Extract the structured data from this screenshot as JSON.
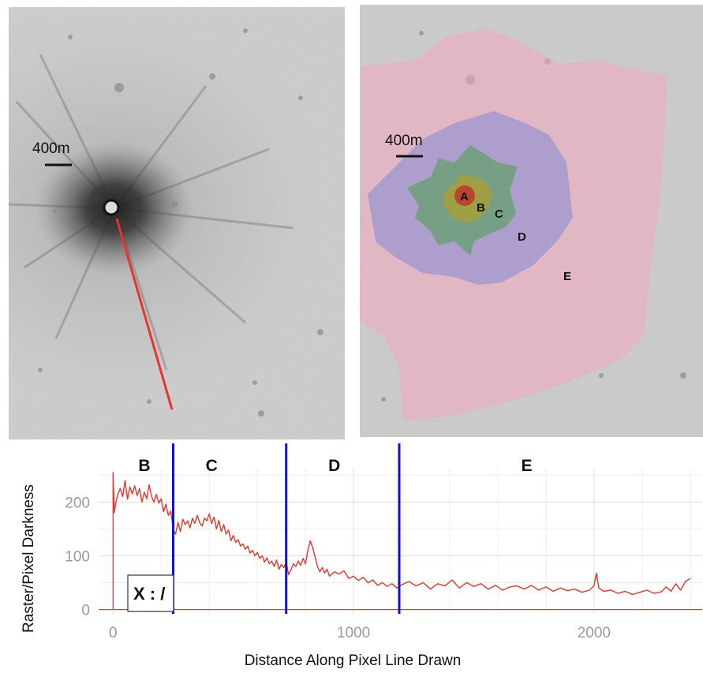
{
  "left_panel": {
    "scale_label": "400m",
    "profile_line_color": "#e8352a"
  },
  "right_panel": {
    "scale_label": "400m",
    "zones": [
      {
        "label": "A",
        "color": "#c0362a"
      },
      {
        "label": "B",
        "color": "#a8a020"
      },
      {
        "label": "C",
        "color": "#5aa060"
      },
      {
        "label": "D",
        "color": "#8c8fd8"
      },
      {
        "label": "E",
        "color": "#f0a8b8"
      }
    ]
  },
  "chart_data": {
    "type": "line",
    "xlabel": "Distance Along Pixel Line Drawn",
    "ylabel": "Raster/Pixel Darkness",
    "xlim": [
      -60,
      2450
    ],
    "ylim": [
      -8,
      262
    ],
    "x_ticks": [
      0,
      1000,
      2000
    ],
    "y_ticks": [
      0,
      100,
      200
    ],
    "line_color": "#e8352a",
    "divider_color": "#1010cc",
    "segment_boundaries": [
      250,
      720,
      1190
    ],
    "segment_labels": [
      {
        "label": "B",
        "x": 130
      },
      {
        "label": "C",
        "x": 410
      },
      {
        "label": "D",
        "x": 920
      },
      {
        "label": "E",
        "x": 1720
      }
    ],
    "series": [
      {
        "x": [
          0,
          5,
          10,
          20,
          30,
          40,
          50,
          60,
          70,
          80,
          90,
          100,
          110,
          120,
          130,
          140,
          150,
          160,
          170,
          180,
          190,
          200,
          210,
          220,
          230,
          240,
          250,
          260,
          270,
          280,
          290,
          300,
          310,
          320,
          330,
          340,
          350,
          360,
          370,
          380,
          390,
          400,
          410,
          420,
          430,
          440,
          450,
          460,
          470,
          480,
          490,
          500,
          510,
          520,
          530,
          540,
          550,
          560,
          570,
          580,
          590,
          600,
          610,
          620,
          630,
          640,
          650,
          660,
          670,
          680,
          690,
          700,
          710,
          720,
          730,
          740,
          750,
          760,
          770,
          780,
          790,
          800,
          810,
          820,
          830,
          840,
          850,
          860,
          870,
          880,
          890,
          900,
          920,
          940,
          960,
          980,
          1000,
          1020,
          1040,
          1060,
          1080,
          1100,
          1120,
          1140,
          1160,
          1180,
          1200,
          1230,
          1260,
          1290,
          1320,
          1350,
          1380,
          1410,
          1440,
          1470,
          1500,
          1530,
          1560,
          1590,
          1620,
          1650,
          1680,
          1710,
          1740,
          1770,
          1800,
          1830,
          1860,
          1890,
          1920,
          1950,
          1980,
          2000,
          2010,
          2020,
          2040,
          2070,
          2100,
          2130,
          2160,
          2190,
          2220,
          2250,
          2280,
          2300,
          2320,
          2340,
          2360,
          2380,
          2400
        ],
        "y": [
          255,
          180,
          195,
          215,
          225,
          210,
          240,
          205,
          228,
          215,
          230,
          212,
          225,
          200,
          218,
          206,
          232,
          210,
          200,
          214,
          198,
          206,
          182,
          196,
          175,
          183,
          150,
          140,
          162,
          145,
          168,
          158,
          165,
          152,
          170,
          160,
          175,
          162,
          155,
          170,
          165,
          178,
          160,
          172,
          150,
          166,
          145,
          158,
          140,
          148,
          128,
          138,
          125,
          130,
          118,
          122,
          112,
          118,
          105,
          110,
          100,
          106,
          95,
          100,
          88,
          96,
          85,
          90,
          80,
          92,
          75,
          84,
          78,
          88,
          65,
          74,
          85,
          80,
          90,
          82,
          95,
          85,
          110,
          128,
          115,
          98,
          80,
          70,
          78,
          68,
          75,
          62,
          70,
          66,
          72,
          58,
          62,
          54,
          60,
          50,
          55,
          45,
          50,
          43,
          48,
          40,
          46,
          52,
          44,
          50,
          38,
          48,
          44,
          55,
          40,
          50,
          43,
          48,
          38,
          45,
          36,
          42,
          44,
          38,
          45,
          36,
          42,
          34,
          40,
          35,
          38,
          32,
          36,
          44,
          68,
          40,
          34,
          36,
          30,
          34,
          28,
          32,
          36,
          30,
          33,
          42,
          34,
          48,
          36,
          52,
          58
        ]
      }
    ]
  },
  "chart_box_label": "X : /"
}
